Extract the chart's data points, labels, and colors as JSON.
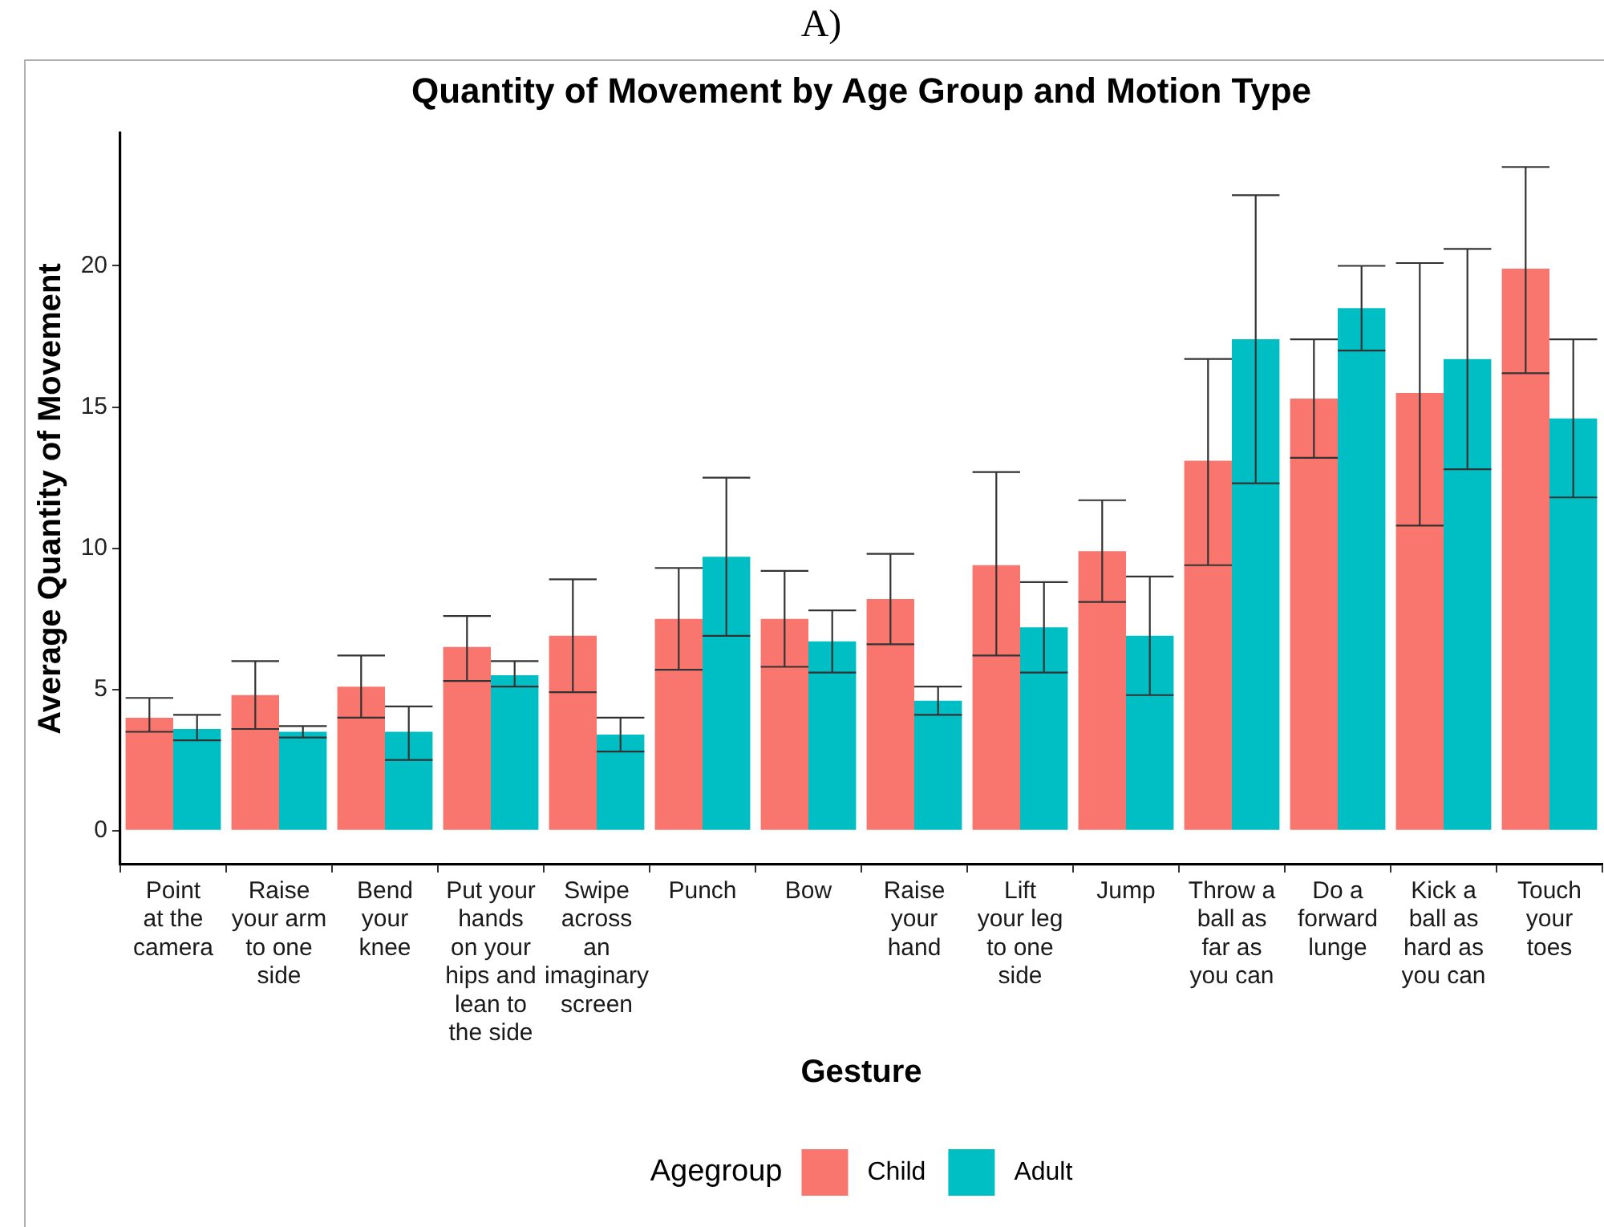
{
  "chart_data": {
    "type": "bar",
    "title": "Quantity of Movement by Age Group and Motion Type",
    "xlabel": "Gesture",
    "ylabel": "Average Quantity of Movement",
    "legend_title": "Agegroup",
    "annotations": [
      "A)"
    ],
    "categories": [
      "Point\nat the\ncamera",
      "Raise\nyour arm\nto one\nside",
      "Bend\nyour\nknee",
      "Put your\nhands\non your\nhips and\nlean to\nthe side",
      "Swipe\nacross\nan\nimaginary\nscreen",
      "Punch",
      "Bow",
      "Raise\nyour\nhand",
      "Lift\nyour leg\nto one\nside",
      "Jump",
      "Throw a\nball as\nfar as\nyou can",
      "Do a\nforward\nlunge",
      "Kick a\nball as\nhard as\nyou can",
      "Touch\nyour\ntoes"
    ],
    "series": [
      {
        "name": "Child",
        "color": "#f8766d",
        "values": [
          4.0,
          4.8,
          5.1,
          6.5,
          6.9,
          7.5,
          7.5,
          8.2,
          9.4,
          9.9,
          13.1,
          15.3,
          15.5,
          19.9
        ],
        "errors": [
          [
            3.5,
            4.7
          ],
          [
            3.6,
            6.0
          ],
          [
            4.0,
            6.2
          ],
          [
            5.3,
            7.6
          ],
          [
            4.9,
            8.9
          ],
          [
            5.7,
            9.3
          ],
          [
            5.8,
            9.2
          ],
          [
            6.6,
            9.8
          ],
          [
            6.2,
            12.7
          ],
          [
            8.1,
            11.7
          ],
          [
            9.4,
            16.7
          ],
          [
            13.2,
            17.4
          ],
          [
            10.8,
            20.1
          ],
          [
            16.2,
            23.5
          ]
        ]
      },
      {
        "name": "Adult",
        "color": "#00bfc4",
        "values": [
          3.6,
          3.5,
          3.5,
          5.5,
          3.4,
          9.7,
          6.7,
          4.6,
          7.2,
          6.9,
          17.4,
          18.5,
          16.7,
          14.6
        ],
        "errors": [
          [
            3.2,
            4.1
          ],
          [
            3.3,
            3.7
          ],
          [
            2.5,
            4.4
          ],
          [
            5.1,
            6.0
          ],
          [
            2.8,
            4.0
          ],
          [
            6.9,
            12.5
          ],
          [
            5.6,
            7.8
          ],
          [
            4.1,
            5.1
          ],
          [
            5.6,
            8.8
          ],
          [
            4.8,
            9.0
          ],
          [
            12.3,
            22.5
          ],
          [
            17.0,
            20.0
          ],
          [
            12.8,
            20.6
          ],
          [
            11.8,
            17.4
          ]
        ]
      }
    ],
    "ylim": [
      -1.2,
      24.7
    ],
    "yticks": [
      0,
      5,
      10,
      15,
      20
    ],
    "grid": false,
    "legend": "bottom"
  }
}
